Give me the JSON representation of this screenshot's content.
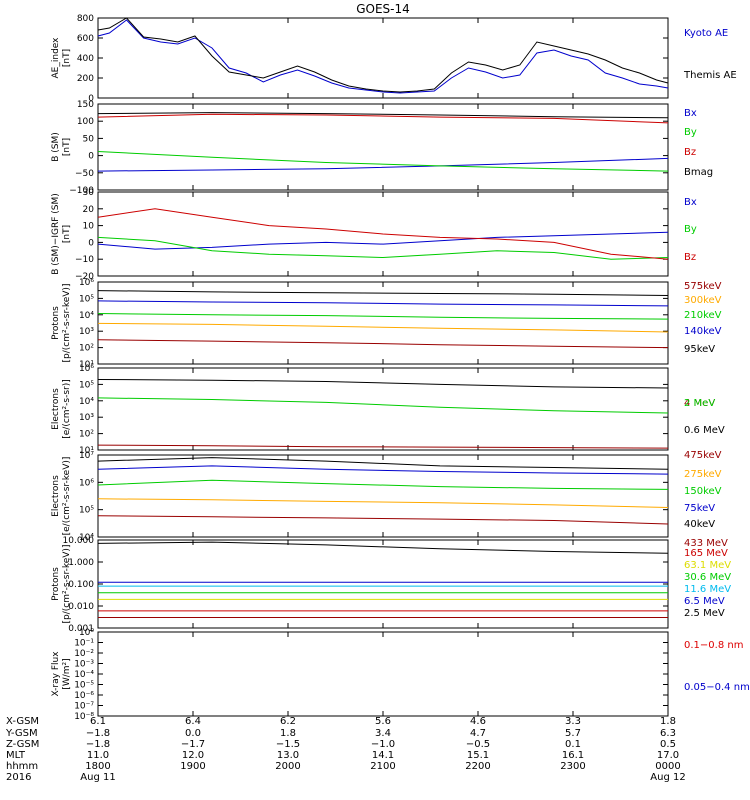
{
  "title": "GOES-14",
  "colors": {
    "black": "#000000",
    "blue": "#0000cc",
    "red": "#cc0000",
    "green": "#00cc00",
    "orange": "#ffaa00",
    "maroon": "#990000",
    "cyan": "#00bbee",
    "yellow": "#dddd00",
    "nm_red": "#dd0000"
  },
  "chart_data": [
    {
      "type": "line",
      "id": "ae",
      "ylabel": "AE_index\n[nT]",
      "scale": "linear",
      "ylim": [
        0,
        800
      ],
      "ticks": [
        "0",
        "200",
        "400",
        "600",
        "800"
      ],
      "tick_values": [
        0,
        200,
        400,
        600,
        800
      ],
      "series": [
        {
          "name": "Kyoto AE",
          "color": "blue",
          "x": [
            0,
            0.02,
            0.05,
            0.08,
            0.11,
            0.14,
            0.17,
            0.2,
            0.23,
            0.26,
            0.29,
            0.32,
            0.35,
            0.38,
            0.41,
            0.44,
            0.47,
            0.5,
            0.53,
            0.56,
            0.59,
            0.62,
            0.65,
            0.68,
            0.71,
            0.74,
            0.77,
            0.8,
            0.83,
            0.86,
            0.89,
            0.92,
            0.95,
            0.98,
            1.0
          ],
          "values": [
            620,
            650,
            780,
            600,
            560,
            540,
            600,
            500,
            300,
            250,
            160,
            230,
            280,
            220,
            150,
            100,
            80,
            60,
            50,
            60,
            70,
            200,
            300,
            260,
            200,
            230,
            450,
            480,
            420,
            380,
            250,
            200,
            140,
            120,
            100
          ]
        },
        {
          "name": "Themis AE",
          "color": "black",
          "x": [
            0,
            0.02,
            0.05,
            0.08,
            0.11,
            0.14,
            0.17,
            0.2,
            0.23,
            0.26,
            0.29,
            0.32,
            0.35,
            0.38,
            0.41,
            0.44,
            0.47,
            0.5,
            0.53,
            0.56,
            0.59,
            0.62,
            0.65,
            0.68,
            0.71,
            0.74,
            0.77,
            0.8,
            0.83,
            0.86,
            0.89,
            0.92,
            0.95,
            0.98,
            1.0
          ],
          "values": [
            680,
            700,
            800,
            610,
            590,
            560,
            620,
            420,
            260,
            230,
            200,
            260,
            320,
            260,
            180,
            120,
            90,
            70,
            60,
            70,
            90,
            250,
            360,
            330,
            280,
            330,
            560,
            520,
            480,
            440,
            380,
            300,
            250,
            180,
            150
          ]
        }
      ]
    },
    {
      "type": "line",
      "id": "bsm",
      "ylabel": "B (SM)\n[nT]",
      "scale": "linear",
      "ylim": [
        -100,
        150
      ],
      "ticks": [
        "−100",
        "−50",
        "0",
        "50",
        "100",
        "150"
      ],
      "tick_values": [
        -100,
        -50,
        0,
        50,
        100,
        150
      ],
      "series": [
        {
          "name": "Bx",
          "color": "blue",
          "x": [
            0,
            0.2,
            0.4,
            0.6,
            0.8,
            1.0
          ],
          "values": [
            -45,
            -42,
            -38,
            -30,
            -20,
            -8
          ]
        },
        {
          "name": "By",
          "color": "green",
          "x": [
            0,
            0.2,
            0.4,
            0.6,
            0.8,
            1.0
          ],
          "values": [
            12,
            -5,
            -20,
            -30,
            -38,
            -45
          ]
        },
        {
          "name": "Bz",
          "color": "red",
          "x": [
            0,
            0.2,
            0.4,
            0.6,
            0.8,
            1.0
          ],
          "values": [
            112,
            120,
            118,
            112,
            108,
            95
          ]
        },
        {
          "name": "Bmag",
          "color": "black",
          "x": [
            0,
            0.2,
            0.4,
            0.6,
            0.8,
            1.0
          ],
          "values": [
            122,
            125,
            122,
            118,
            113,
            110
          ]
        }
      ]
    },
    {
      "type": "line",
      "id": "bdiff",
      "ylabel": "B (SM)−IGRF (SM)\n[nT]",
      "scale": "linear",
      "ylim": [
        -20,
        30
      ],
      "ticks": [
        "−20",
        "−10",
        "0",
        "10",
        "20",
        "30"
      ],
      "tick_values": [
        -20,
        -10,
        0,
        10,
        20,
        30
      ],
      "series": [
        {
          "name": "Bx",
          "color": "blue",
          "x": [
            0,
            0.1,
            0.2,
            0.3,
            0.4,
            0.5,
            0.6,
            0.7,
            0.8,
            0.9,
            1.0
          ],
          "values": [
            -1,
            -4,
            -3,
            -1,
            0,
            -1,
            1,
            3,
            4,
            5,
            6
          ]
        },
        {
          "name": "By",
          "color": "green",
          "x": [
            0,
            0.1,
            0.2,
            0.3,
            0.4,
            0.5,
            0.6,
            0.7,
            0.8,
            0.9,
            1.0
          ],
          "values": [
            3,
            1,
            -5,
            -7,
            -8,
            -9,
            -7,
            -5,
            -6,
            -10,
            -9
          ]
        },
        {
          "name": "Bz",
          "color": "red",
          "x": [
            0,
            0.1,
            0.2,
            0.3,
            0.4,
            0.5,
            0.6,
            0.7,
            0.8,
            0.9,
            1.0
          ],
          "values": [
            15,
            20,
            15,
            10,
            8,
            5,
            3,
            2,
            0,
            -7,
            -10
          ]
        }
      ]
    },
    {
      "type": "line",
      "id": "protons",
      "ylabel": "Protons\n[p/(cm²-s-sr-keV)]",
      "scale": "log",
      "ylim": [
        10,
        1000000
      ],
      "ticks": [
        "10¹",
        "10²",
        "10³",
        "10⁴",
        "10⁵",
        "10⁶"
      ],
      "tick_values": [
        10,
        100,
        1000,
        10000,
        100000,
        1000000
      ],
      "series": [
        {
          "name": "575keV",
          "color": "maroon",
          "x": [
            0,
            0.2,
            0.4,
            0.6,
            0.8,
            1.0
          ],
          "values": [
            300,
            250,
            200,
            150,
            120,
            100
          ]
        },
        {
          "name": "300keV",
          "color": "orange",
          "x": [
            0,
            0.2,
            0.4,
            0.6,
            0.8,
            1.0
          ],
          "values": [
            3000,
            2600,
            2000,
            1500,
            1200,
            900
          ]
        },
        {
          "name": "210keV",
          "color": "green",
          "x": [
            0,
            0.2,
            0.4,
            0.6,
            0.8,
            1.0
          ],
          "values": [
            12000,
            10000,
            9000,
            7000,
            6000,
            5500
          ]
        },
        {
          "name": "140keV",
          "color": "blue",
          "x": [
            0,
            0.2,
            0.4,
            0.6,
            0.8,
            1.0
          ],
          "values": [
            70000,
            60000,
            55000,
            45000,
            40000,
            35000
          ]
        },
        {
          "name": "95keV",
          "color": "black",
          "x": [
            0,
            0.2,
            0.4,
            0.6,
            0.8,
            1.0
          ],
          "values": [
            300000,
            250000,
            220000,
            200000,
            180000,
            150000
          ]
        }
      ]
    },
    {
      "type": "line",
      "id": "electrons",
      "ylabel": "Electrons\n[e/(cm²-s-sr)]",
      "scale": "log",
      "ylim": [
        10,
        1000000
      ],
      "ticks": [
        "10¹",
        "10²",
        "10³",
        "10⁴",
        "10⁵",
        "10⁶"
      ],
      "tick_values": [
        10,
        100,
        1000,
        10000,
        100000,
        1000000
      ],
      "series": [
        {
          "name": "4 MeV",
          "color": "maroon",
          "x": [
            0,
            0.2,
            0.4,
            0.6,
            0.8,
            1.0
          ],
          "values": [
            20,
            18,
            16,
            15,
            14,
            13
          ]
        },
        {
          "name": "2 MeV",
          "color": "green",
          "x": [
            0,
            0.2,
            0.4,
            0.6,
            0.8,
            1.0
          ],
          "values": [
            15000,
            12000,
            8000,
            4000,
            2500,
            1800
          ]
        },
        {
          "name": "0.6 MeV",
          "color": "black",
          "x": [
            0,
            0.2,
            0.4,
            0.6,
            0.8,
            1.0
          ],
          "values": [
            200000,
            180000,
            150000,
            100000,
            70000,
            60000
          ]
        }
      ]
    },
    {
      "type": "line",
      "id": "electrons_kev",
      "ylabel": "Electrons\n[e/(cm²-s-sr-keV)]",
      "scale": "log",
      "ylim": [
        10000,
        10000000
      ],
      "ticks": [
        "10⁴",
        "10⁵",
        "10⁶",
        "10⁷"
      ],
      "tick_values": [
        10000,
        100000,
        1000000,
        10000000
      ],
      "series": [
        {
          "name": "475keV",
          "color": "maroon",
          "x": [
            0,
            0.2,
            0.4,
            0.6,
            0.8,
            1.0
          ],
          "values": [
            60000,
            55000,
            50000,
            45000,
            40000,
            30000
          ]
        },
        {
          "name": "275keV",
          "color": "orange",
          "x": [
            0,
            0.2,
            0.4,
            0.6,
            0.8,
            1.0
          ],
          "values": [
            250000,
            230000,
            200000,
            180000,
            150000,
            120000
          ]
        },
        {
          "name": "150keV",
          "color": "green",
          "x": [
            0,
            0.2,
            0.4,
            0.6,
            0.8,
            1.0
          ],
          "values": [
            800000,
            1200000,
            900000,
            700000,
            600000,
            550000
          ]
        },
        {
          "name": "75keV",
          "color": "blue",
          "x": [
            0,
            0.2,
            0.4,
            0.6,
            0.8,
            1.0
          ],
          "values": [
            3000000,
            4000000,
            3000000,
            2500000,
            2200000,
            2000000
          ]
        },
        {
          "name": "40keV",
          "color": "black",
          "x": [
            0,
            0.2,
            0.4,
            0.6,
            0.8,
            1.0
          ],
          "values": [
            6000000,
            8000000,
            6000000,
            4000000,
            3500000,
            3000000
          ]
        }
      ]
    },
    {
      "type": "line",
      "id": "protons_mev",
      "ylabel": "Protons\n[p/(cm²-s-sr-keV)]",
      "scale": "log",
      "ylim": [
        0.001,
        10
      ],
      "ticks": [
        "0.001",
        "0.010",
        "0.100",
        "1.000",
        "10.000"
      ],
      "tick_values": [
        0.001,
        0.01,
        0.1,
        1,
        10
      ],
      "series": [
        {
          "name": "433 MeV",
          "color": "maroon",
          "x": [
            0,
            1.0
          ],
          "values": [
            0.003,
            0.003
          ]
        },
        {
          "name": "165 MeV",
          "color": "red",
          "x": [
            0,
            1.0
          ],
          "values": [
            0.006,
            0.006
          ]
        },
        {
          "name": "63.1 MeV",
          "color": "yellow",
          "x": [
            0,
            1.0
          ],
          "values": [
            0.02,
            0.02
          ]
        },
        {
          "name": "30.6 MeV",
          "color": "green",
          "x": [
            0,
            1.0
          ],
          "values": [
            0.04,
            0.04
          ]
        },
        {
          "name": "11.6 MeV",
          "color": "cyan",
          "x": [
            0,
            1.0
          ],
          "values": [
            0.08,
            0.08
          ]
        },
        {
          "name": "6.5 MeV",
          "color": "blue",
          "x": [
            0,
            1.0
          ],
          "values": [
            0.12,
            0.12
          ]
        },
        {
          "name": "2.5 MeV",
          "color": "black",
          "x": [
            0,
            0.2,
            0.4,
            0.6,
            0.8,
            1.0
          ],
          "values": [
            7,
            8,
            6,
            4,
            3,
            2.5
          ]
        }
      ]
    },
    {
      "type": "line",
      "id": "xray",
      "ylabel": "X-ray Flux\n[W/m²]",
      "scale": "log",
      "ylim": [
        1e-08,
        1
      ],
      "ticks": [
        "10⁻⁸",
        "10⁻⁷",
        "10⁻⁶",
        "10⁻⁵",
        "10⁻⁴",
        "10⁻³",
        "10⁻²",
        "10⁻¹",
        "10⁰"
      ],
      "tick_values": [
        1e-08,
        1e-07,
        1e-06,
        1e-05,
        0.0001,
        0.001,
        0.01,
        0.1,
        1
      ],
      "series": [
        {
          "name": "0.1−0.8 nm",
          "color": "nm_red",
          "x": [],
          "values": []
        },
        {
          "name": "0.05−0.4 nm",
          "color": "blue",
          "x": [],
          "values": []
        }
      ]
    }
  ],
  "ephemeris": {
    "labels": [
      "X-GSM",
      "Y-GSM",
      "Z-GSM",
      "MLT",
      "hhmm",
      "2016"
    ],
    "columns": [
      [
        "6.1",
        "−1.8",
        "−1.8",
        "11.0",
        "1800",
        "Aug 11"
      ],
      [
        "6.4",
        "0.0",
        "−1.7",
        "12.0",
        "1900",
        ""
      ],
      [
        "6.2",
        "1.8",
        "−1.5",
        "13.0",
        "2000",
        ""
      ],
      [
        "5.6",
        "3.4",
        "−1.0",
        "14.1",
        "2100",
        ""
      ],
      [
        "4.6",
        "4.7",
        "−0.5",
        "15.1",
        "2200",
        ""
      ],
      [
        "3.3",
        "5.7",
        "0.1",
        "16.1",
        "2300",
        ""
      ],
      [
        "1.8",
        "6.3",
        "0.5",
        "17.0",
        "0000",
        "Aug 12"
      ]
    ]
  }
}
